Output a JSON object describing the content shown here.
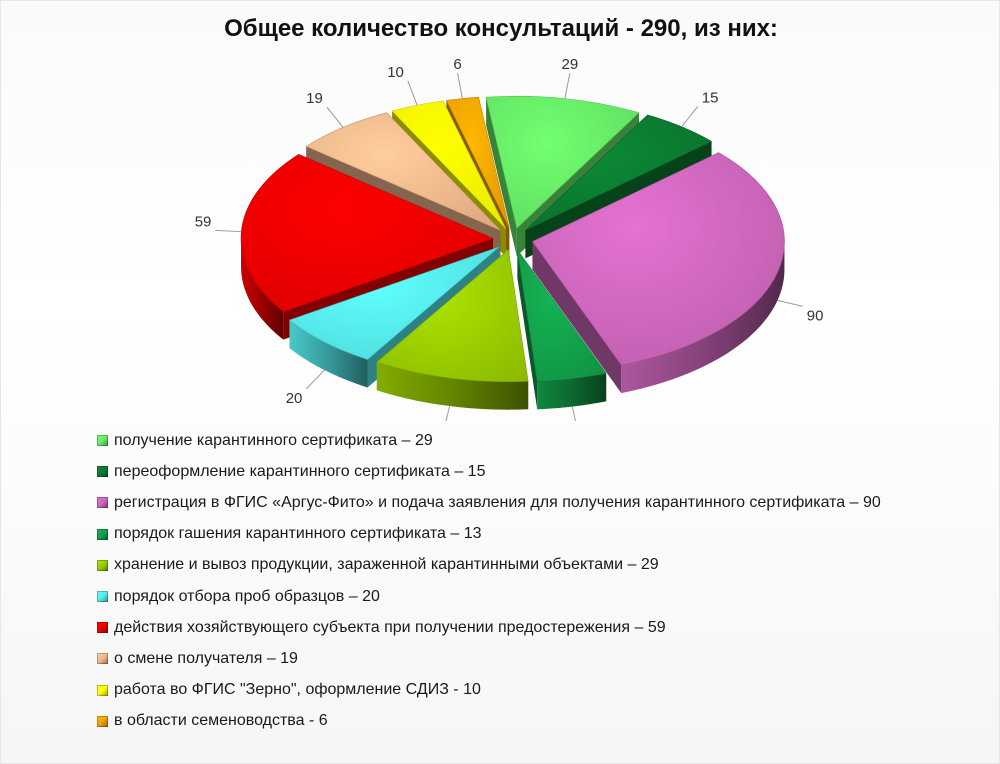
{
  "chart_data": {
    "type": "pie",
    "variant": "3d-exploded",
    "title": "Общее количество консультаций - 290, из них:",
    "total": 290,
    "series": [
      {
        "name": "получение карантинного сертификата – 29",
        "value": 29,
        "color": "#66ee66"
      },
      {
        "name": "переоформление карантинного сертификата – 15",
        "value": 15,
        "color": "#0b7a30"
      },
      {
        "name": "регистрация в ФГИС «Аргус-Фито» и подача заявления для получения карантинного сертификата – 90",
        "value": 90,
        "color": "#cc66bb"
      },
      {
        "name": "порядок гашения карантинного сертификата – 13",
        "value": 13,
        "color": "#13a04a"
      },
      {
        "name": "хранение и вывоз продукции, зараженной карантинными объектами – 29",
        "value": 29,
        "color": "#99cc00"
      },
      {
        "name": "порядок отбора проб образцов – 20",
        "value": 20,
        "color": "#55ecee"
      },
      {
        "name": "действия хозяйствующего субъекта при получении предостережения – 59",
        "value": 59,
        "color": "#ee0000"
      },
      {
        "name": "о смене получателя – 19",
        "value": 19,
        "color": "#f2b88c"
      },
      {
        "name": "работа во ФГИС \"Зерно\", оформление СДИЗ - 10",
        "value": 10,
        "color": "#ffff00"
      },
      {
        "name": "в области семеноводства - 6",
        "value": 6,
        "color": "#f2a400"
      }
    ],
    "legend_position": "bottom",
    "data_labels": true
  }
}
